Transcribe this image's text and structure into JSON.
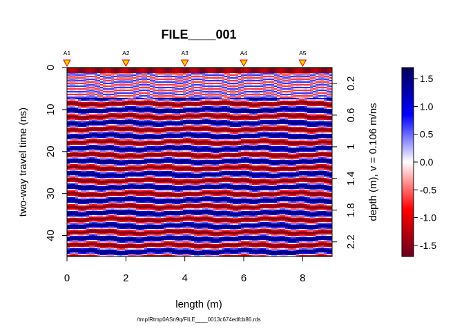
{
  "chart_data": {
    "type": "heatmap",
    "title": "FILE____001",
    "xlabel": "length (m)",
    "ylabel": "two-way travel time (ns)",
    "ylabel_right": "depth (m),  v = 0.106 m/ns",
    "footer": "/tmp/Rtmp0ASn9q/FILE____0013c674edfcb86.rds",
    "xlim": [
      0,
      9
    ],
    "ylim": [
      0,
      45
    ],
    "x_ticks": [
      0,
      2,
      4,
      6,
      8
    ],
    "x_tick_labels": [
      "0",
      "2",
      "4",
      "6",
      "8"
    ],
    "y_ticks": [
      0,
      10,
      20,
      30,
      40
    ],
    "y_tick_labels": [
      "0",
      "10",
      "20",
      "30",
      "40"
    ],
    "depth_ticks": [
      0.2,
      0.6,
      1,
      1.4,
      1.8,
      2.2
    ],
    "depth_tick_labels": [
      "0.2",
      "0.6",
      "1",
      "1.4",
      "1.8",
      "2.2"
    ],
    "velocity_m_per_ns": 0.106,
    "markers": [
      {
        "label": "A1",
        "x": 0
      },
      {
        "label": "A2",
        "x": 2
      },
      {
        "label": "A3",
        "x": 4
      },
      {
        "label": "A4",
        "x": 6
      },
      {
        "label": "A5",
        "x": 8
      }
    ],
    "colorbar": {
      "range": [
        -1.7,
        1.7
      ],
      "ticks": [
        1.5,
        1.0,
        0.5,
        0.0,
        -0.5,
        -1.0,
        -1.5
      ],
      "tick_labels": [
        "1.5",
        "1.0",
        "0.5",
        "0.0",
        "-0.5",
        "-1.0",
        "-1.5"
      ],
      "colors": [
        "#67001f",
        "#ff0000",
        "#ffffff",
        "#0000ff",
        "#00005a"
      ]
    },
    "legend_placement": "right",
    "grid": false
  }
}
